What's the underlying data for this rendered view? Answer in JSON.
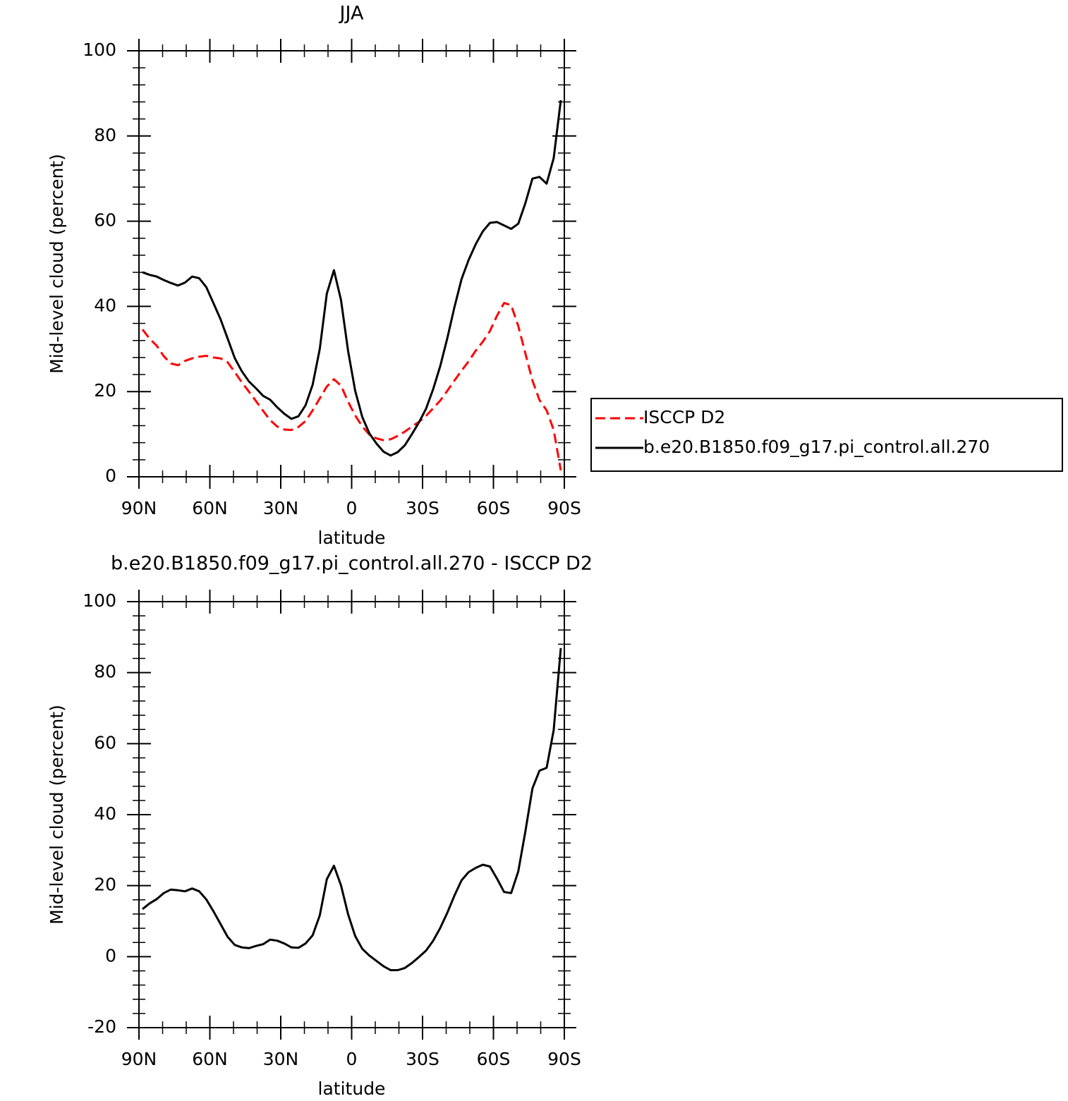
{
  "chart_data": [
    {
      "type": "line",
      "title": "JJA",
      "xlabel": "latitude",
      "ylabel": "Mid-level cloud (percent)",
      "x": [
        88.5,
        85.5,
        82.5,
        79.5,
        76.5,
        73.5,
        70.5,
        67.5,
        64.5,
        61.5,
        58.5,
        55.5,
        52.5,
        49.5,
        46.5,
        43.5,
        40.5,
        37.5,
        34.5,
        31.5,
        28.5,
        25.5,
        22.5,
        19.5,
        16.5,
        13.5,
        10.5,
        7.5,
        4.5,
        1.5,
        -1.5,
        -4.5,
        -7.5,
        -10.5,
        -13.5,
        -16.5,
        -19.5,
        -22.5,
        -25.5,
        -28.5,
        -31.5,
        -34.5,
        -37.5,
        -40.5,
        -43.5,
        -46.5,
        -49.5,
        -52.5,
        -55.5,
        -58.5,
        -61.5,
        -64.5,
        -67.5,
        -70.5,
        -73.5,
        -76.5,
        -79.5,
        -82.5,
        -85.5,
        -88.5
      ],
      "series": [
        {
          "name": "ISCCP D2",
          "color": "#ff0000",
          "linestyle": "dashed",
          "values": [
            34.6,
            32.4,
            30.8,
            28.3,
            26.6,
            26.2,
            27.2,
            27.8,
            28.2,
            28.4,
            28.0,
            27.8,
            26.9,
            24.6,
            22.2,
            20.0,
            17.8,
            15.5,
            13.3,
            11.8,
            11.1,
            11.0,
            11.7,
            13.1,
            15.6,
            18.4,
            21.2,
            22.9,
            21.4,
            17.6,
            14.4,
            11.8,
            9.9,
            9.0,
            8.6,
            8.8,
            9.6,
            10.6,
            11.8,
            12.9,
            14.3,
            16.1,
            17.9,
            20.2,
            22.6,
            24.9,
            27.1,
            29.6,
            31.7,
            34.2,
            37.8,
            40.8,
            40.3,
            35.4,
            29.0,
            22.6,
            18.0,
            15.6,
            11.0,
            1.5
          ]
        },
        {
          "name": "b.e20.B1850.f09_g17.pi_control.all.270",
          "color": "#000000",
          "linestyle": "solid",
          "values": [
            48.0,
            47.4,
            47.0,
            46.2,
            45.5,
            44.9,
            45.6,
            47.0,
            46.6,
            44.5,
            40.8,
            37.0,
            32.5,
            27.9,
            24.8,
            22.4,
            20.8,
            19.0,
            18.1,
            16.3,
            14.8,
            13.6,
            14.2,
            16.8,
            21.6,
            30.0,
            43.0,
            48.5,
            41.5,
            29.5,
            20.2,
            14.0,
            10.2,
            7.8,
            5.9,
            5.0,
            5.8,
            7.4,
            10.0,
            12.8,
            16.0,
            20.6,
            26.0,
            32.6,
            39.8,
            46.4,
            50.9,
            54.6,
            57.6,
            59.6,
            59.8,
            59.0,
            58.2,
            59.4,
            64.2,
            70.0,
            70.4,
            68.8,
            74.8,
            88.4
          ]
        }
      ],
      "xlim": [
        90,
        -90
      ],
      "xticks": [
        {
          "value": 90,
          "label": "90N"
        },
        {
          "value": 60,
          "label": "60N"
        },
        {
          "value": 30,
          "label": "30N"
        },
        0,
        {
          "value": -30,
          "label": "30S"
        },
        {
          "value": -60,
          "label": "60S"
        },
        {
          "value": -90,
          "label": "90S"
        }
      ],
      "xminorticks": [
        80,
        70,
        50,
        40,
        20,
        10,
        -10,
        -20,
        -40,
        -50,
        -70,
        -80
      ],
      "ylim": [
        0,
        100
      ],
      "yticks": [
        0,
        20,
        40,
        60,
        80,
        100
      ],
      "yminorticks": [
        4,
        8,
        12,
        16,
        24,
        28,
        32,
        36,
        44,
        48,
        52,
        56,
        64,
        68,
        72,
        76,
        84,
        88,
        92,
        96
      ],
      "legend": "right"
    },
    {
      "type": "line",
      "title": "b.e20.B1850.f09_g17.pi_control.all.270 - ISCCP D2",
      "xlabel": "latitude",
      "ylabel": "Mid-level cloud (percent)",
      "x": [
        88.5,
        85.5,
        82.5,
        79.5,
        76.5,
        73.5,
        70.5,
        67.5,
        64.5,
        61.5,
        58.5,
        55.5,
        52.5,
        49.5,
        46.5,
        43.5,
        40.5,
        37.5,
        34.5,
        31.5,
        28.5,
        25.5,
        22.5,
        19.5,
        16.5,
        13.5,
        10.5,
        7.5,
        4.5,
        1.5,
        -1.5,
        -4.5,
        -7.5,
        -10.5,
        -13.5,
        -16.5,
        -19.5,
        -22.5,
        -25.5,
        -28.5,
        -31.5,
        -34.5,
        -37.5,
        -40.5,
        -43.5,
        -46.5,
        -49.5,
        -52.5,
        -55.5,
        -58.5,
        -61.5,
        -64.5,
        -67.5,
        -70.5,
        -73.5,
        -76.5,
        -79.5,
        -82.5,
        -85.5,
        -88.5
      ],
      "color": "#000000",
      "values": [
        13.4,
        15.0,
        16.2,
        17.9,
        18.9,
        18.7,
        18.4,
        19.2,
        18.4,
        16.1,
        12.8,
        9.2,
        5.6,
        3.3,
        2.6,
        2.4,
        3.0,
        3.5,
        4.8,
        4.5,
        3.7,
        2.6,
        2.5,
        3.7,
        6.0,
        11.6,
        21.8,
        25.6,
        20.1,
        11.9,
        5.8,
        2.2,
        0.3,
        -1.2,
        -2.7,
        -3.8,
        -3.8,
        -3.2,
        -1.8,
        -0.1,
        1.7,
        4.5,
        8.1,
        12.4,
        17.2,
        21.5,
        23.8,
        25.0,
        25.9,
        25.4,
        22.0,
        18.2,
        17.9,
        24.0,
        35.2,
        47.4,
        52.4,
        53.2,
        63.8,
        86.9
      ],
      "xlim": [
        90,
        -90
      ],
      "xticks": [
        {
          "value": 90,
          "label": "90N"
        },
        {
          "value": 60,
          "label": "60N"
        },
        {
          "value": 30,
          "label": "30N"
        },
        0,
        {
          "value": -30,
          "label": "30S"
        },
        {
          "value": -60,
          "label": "60S"
        },
        {
          "value": -90,
          "label": "90S"
        }
      ],
      "xminorticks": [
        80,
        70,
        50,
        40,
        20,
        10,
        -10,
        -20,
        -40,
        -50,
        -70,
        -80
      ],
      "ylim": [
        -20,
        100
      ],
      "yticks": [
        -20,
        0,
        20,
        40,
        60,
        80,
        100
      ],
      "yminorticks": [
        -16,
        -12,
        -8,
        -4,
        4,
        8,
        12,
        16,
        24,
        28,
        32,
        36,
        44,
        48,
        52,
        56,
        64,
        68,
        72,
        76,
        84,
        88,
        92,
        96
      ]
    }
  ]
}
